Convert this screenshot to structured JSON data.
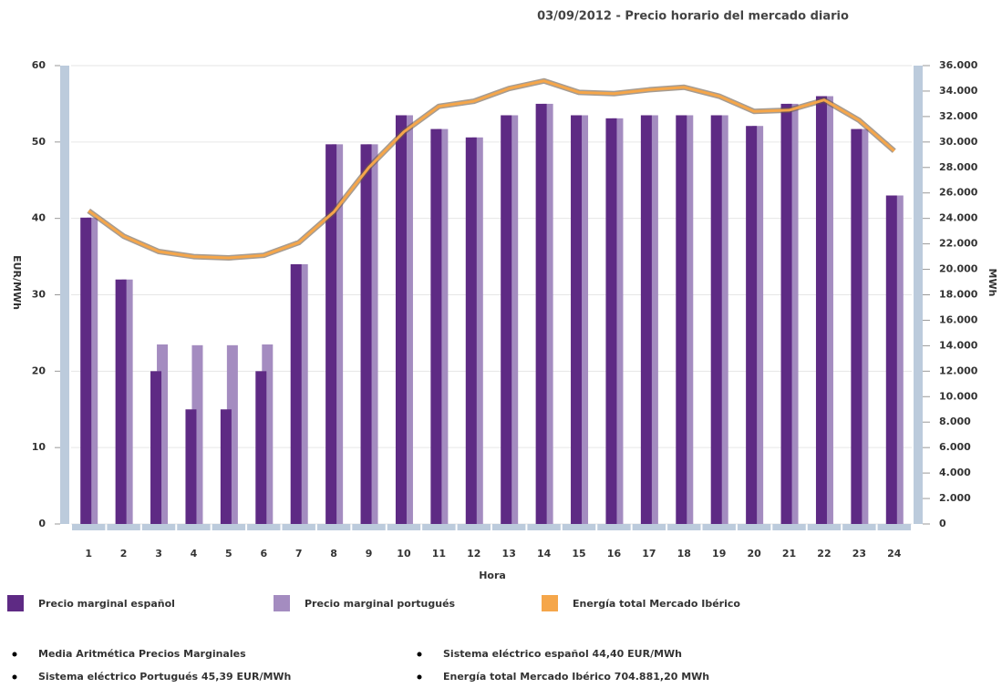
{
  "chart_data": {
    "type": "bar",
    "title": "03/09/2012 - Precio horario del mercado diario",
    "x_label": "Hora",
    "y_label": "EUR/MWh",
    "y2_label": "MWh",
    "categories": [
      "1",
      "2",
      "3",
      "4",
      "5",
      "6",
      "7",
      "8",
      "9",
      "10",
      "11",
      "12",
      "13",
      "14",
      "15",
      "16",
      "17",
      "18",
      "19",
      "20",
      "21",
      "22",
      "23",
      "24"
    ],
    "ylim": [
      0,
      60
    ],
    "yticks": [
      0,
      10,
      20,
      30,
      40,
      50,
      60
    ],
    "y2lim": [
      0,
      36000
    ],
    "y2ticks": [
      0,
      {
        "value": 2000,
        "label": "2.000"
      },
      {
        "value": 4000,
        "label": "4.000"
      },
      {
        "value": 6000,
        "label": "6.000"
      },
      {
        "value": 8000,
        "label": "8.000"
      },
      {
        "value": 10000,
        "label": "10.000"
      },
      {
        "value": 12000,
        "label": "12.000"
      },
      {
        "value": 14000,
        "label": "14.000"
      },
      {
        "value": 16000,
        "label": "16.000"
      },
      {
        "value": 18000,
        "label": "18.000"
      },
      {
        "value": 20000,
        "label": "20.000"
      },
      {
        "value": 22000,
        "label": "22.000"
      },
      {
        "value": 24000,
        "label": "24.000"
      },
      {
        "value": 26000,
        "label": "26.000"
      },
      {
        "value": 28000,
        "label": "28.000"
      },
      {
        "value": 30000,
        "label": "30.000"
      },
      {
        "value": 32000,
        "label": "32.000"
      },
      {
        "value": 34000,
        "label": "34.000"
      },
      {
        "value": 36000,
        "label": "36.000"
      }
    ],
    "grid": true,
    "series": [
      {
        "name": "Precio marginal español",
        "color": "#5e2a84",
        "type": "bar",
        "values": [
          40.1,
          32,
          20,
          15,
          15,
          20,
          34,
          49.7,
          49.7,
          53.5,
          51.7,
          50.6,
          53.5,
          55,
          53.5,
          53.1,
          53.5,
          53.5,
          53.5,
          52.1,
          55,
          56,
          51.7,
          43
        ]
      },
      {
        "name": "Precio marginal portugués",
        "color": "#a48cc0",
        "type": "bar",
        "values": [
          40.1,
          32,
          23.5,
          23.4,
          23.4,
          23.5,
          34,
          49.7,
          49.7,
          53.5,
          51.7,
          50.6,
          53.5,
          55,
          53.5,
          53.1,
          53.5,
          53.5,
          53.5,
          52.1,
          55,
          56,
          51.7,
          43
        ]
      },
      {
        "name": "Energía total Mercado Ibérico",
        "color": "#f5a64a",
        "type": "line",
        "axis": "y2",
        "values": [
          24600,
          22600,
          21400,
          21000,
          20900,
          21100,
          22100,
          24500,
          28000,
          30800,
          32800,
          33200,
          34200,
          34800,
          33900,
          33800,
          34100,
          34300,
          33600,
          32400,
          32500,
          33300,
          31700,
          29300
        ]
      }
    ],
    "notes": [
      "Media Aritmética Precios Marginales",
      "Sistema eléctrico español  44,40 EUR/MWh",
      "Sistema eléctrico Portugués  45,39 EUR/MWh",
      "Energía total Mercado Ibérico  704.881,20 MWh"
    ]
  }
}
